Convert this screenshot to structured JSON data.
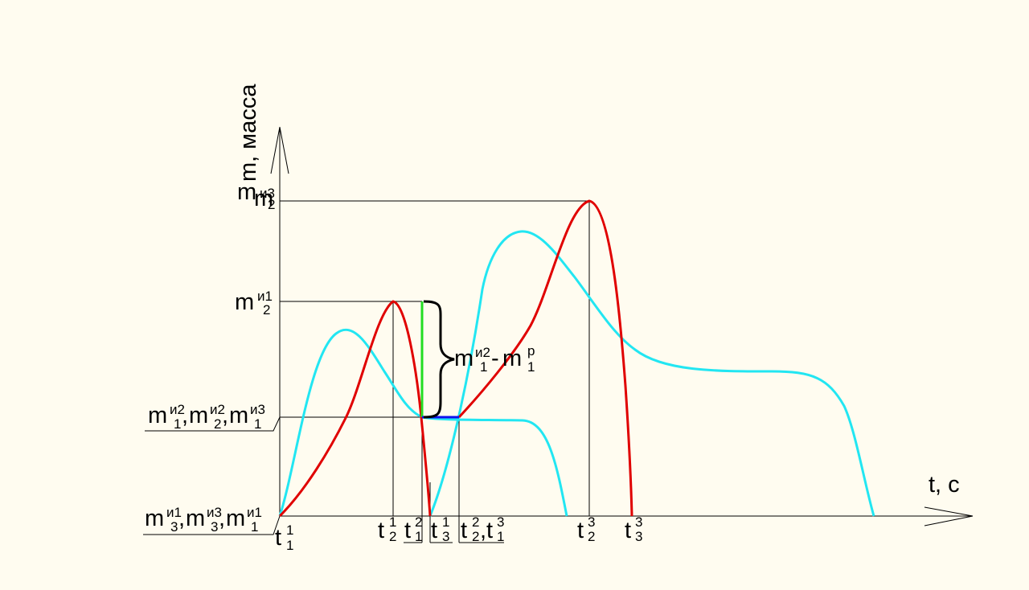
{
  "axes": {
    "y_label": "m, масса",
    "y_symbol": "m",
    "x_label": "t, с"
  },
  "y_labels": {
    "top": {
      "base": "m",
      "sup": "и3",
      "sub": "2"
    },
    "mid": {
      "base": "m",
      "sup": "и1",
      "sub": "2"
    },
    "low": [
      {
        "base": "m",
        "sup": "и2",
        "sub": "1"
      },
      {
        "base": "m",
        "sup": "и2",
        "sub": "2"
      },
      {
        "base": "m",
        "sup": "и3",
        "sub": "1"
      }
    ],
    "origin": [
      {
        "base": "m",
        "sup": "и1",
        "sub": "3"
      },
      {
        "base": "m",
        "sup": "и3",
        "sub": "3"
      },
      {
        "base": "m",
        "sup": "и1",
        "sub": "1"
      }
    ]
  },
  "x_labels": [
    {
      "base": "t",
      "sup": "1",
      "sub": "1"
    },
    {
      "base": "t",
      "sup": "1",
      "sub": "2"
    },
    {
      "base": "t",
      "sup": "2",
      "sub": "1"
    },
    {
      "base": "t",
      "sup": "1",
      "sub": "3"
    },
    {
      "base": "t",
      "sup": "2",
      "sub": "2"
    },
    {
      "base": "t",
      "sup": "3",
      "sub": "1"
    },
    {
      "base": "t",
      "sup": "3",
      "sub": "2"
    },
    {
      "base": "t",
      "sup": "3",
      "sub": "3"
    }
  ],
  "annotation": {
    "a": {
      "base": "m",
      "sup": "и2",
      "sub": "1"
    },
    "minus": "-",
    "b": {
      "base": "m",
      "sup": "р",
      "sub": "1"
    }
  },
  "colors": {
    "background": "#fffcf0",
    "red_curve": "#e00000",
    "cyan_curve": "#22e6f2",
    "green_segment": "#22dd22",
    "blue_segment": "#1010ee",
    "axes": "#000000"
  }
}
